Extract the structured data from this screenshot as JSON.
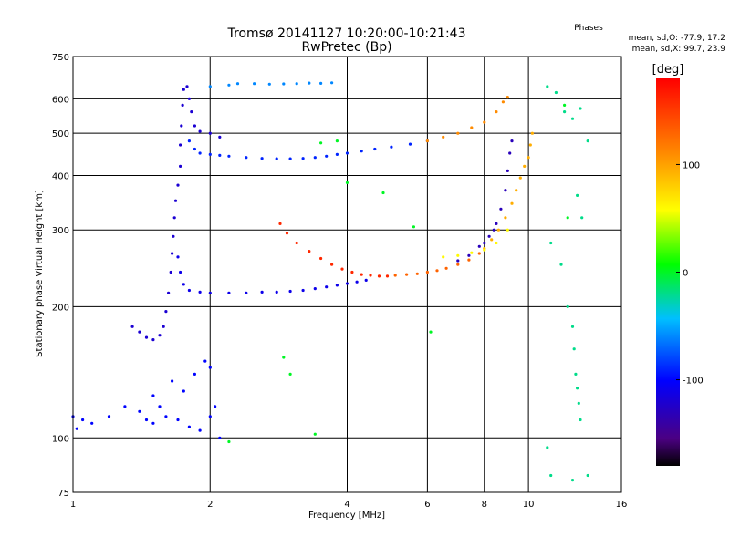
{
  "chart_data": {
    "type": "scatter",
    "title": "Tromsø 20141127 10:20:00-10:21:43",
    "subtitle": "RwPretec (Bp)",
    "xlabel": "Frequency [MHz]",
    "ylabel": "Stationary phase Virtual Height [km]",
    "x_scale": "log",
    "y_scale": "log",
    "xlim": [
      1,
      16
    ],
    "ylim": [
      75,
      750
    ],
    "x_ticks": [
      1,
      2,
      4,
      6,
      8,
      10,
      16
    ],
    "y_ticks": [
      75,
      100,
      200,
      300,
      400,
      500,
      600,
      750
    ],
    "grid": true,
    "phase_info": {
      "title": "Phases",
      "line1": "mean, sd,O: -77.9, 17.2",
      "line2": "mean, sd,X:  99.7, 23.9"
    },
    "colorbar": {
      "label": "[deg]",
      "min": -180,
      "max": 180,
      "ticks": [
        100,
        0,
        -100
      ],
      "colormap": "rainbow"
    },
    "series": [
      {
        "phase": -100,
        "points": [
          [
            1.0,
            112
          ],
          [
            1.02,
            105
          ],
          [
            1.05,
            110
          ],
          [
            1.1,
            108
          ],
          [
            1.2,
            112
          ],
          [
            1.3,
            118
          ],
          [
            1.4,
            115
          ],
          [
            1.45,
            110
          ],
          [
            1.5,
            108
          ],
          [
            1.55,
            118
          ],
          [
            1.6,
            112
          ],
          [
            1.7,
            110
          ],
          [
            1.8,
            106
          ],
          [
            1.9,
            104
          ],
          [
            2.0,
            112
          ],
          [
            2.05,
            118
          ],
          [
            2.1,
            100
          ],
          [
            1.85,
            140
          ],
          [
            1.95,
            150
          ],
          [
            2.0,
            145
          ],
          [
            1.75,
            128
          ],
          [
            1.65,
            135
          ],
          [
            1.5,
            125
          ]
        ]
      },
      {
        "phase": -120,
        "points": [
          [
            1.35,
            180
          ],
          [
            1.4,
            175
          ],
          [
            1.45,
            170
          ],
          [
            1.5,
            168
          ],
          [
            1.55,
            172
          ],
          [
            1.58,
            180
          ],
          [
            1.6,
            195
          ],
          [
            1.62,
            215
          ],
          [
            1.64,
            240
          ],
          [
            1.65,
            265
          ],
          [
            1.66,
            290
          ],
          [
            1.67,
            320
          ],
          [
            1.68,
            350
          ],
          [
            1.7,
            380
          ],
          [
            1.72,
            420
          ],
          [
            1.72,
            470
          ],
          [
            1.73,
            520
          ],
          [
            1.74,
            580
          ],
          [
            1.75,
            630
          ],
          [
            1.78,
            640
          ],
          [
            1.8,
            600
          ],
          [
            1.82,
            560
          ],
          [
            1.85,
            520
          ],
          [
            1.9,
            505
          ],
          [
            2.0,
            500
          ],
          [
            2.1,
            490
          ]
        ]
      },
      {
        "phase": -110,
        "points": [
          [
            1.7,
            260
          ],
          [
            1.72,
            240
          ],
          [
            1.75,
            225
          ],
          [
            1.8,
            218
          ],
          [
            1.9,
            216
          ],
          [
            2.0,
            215
          ],
          [
            2.2,
            215
          ],
          [
            2.4,
            215
          ],
          [
            2.6,
            216
          ],
          [
            2.8,
            216
          ],
          [
            3.0,
            217
          ],
          [
            3.2,
            218
          ],
          [
            3.4,
            220
          ],
          [
            3.6,
            222
          ],
          [
            3.8,
            224
          ],
          [
            4.0,
            226
          ],
          [
            4.2,
            228
          ],
          [
            4.4,
            230
          ]
        ]
      },
      {
        "phase": -90,
        "points": [
          [
            1.8,
            480
          ],
          [
            1.85,
            460
          ],
          [
            1.9,
            450
          ],
          [
            2.0,
            447
          ],
          [
            2.1,
            445
          ],
          [
            2.2,
            443
          ],
          [
            2.4,
            440
          ],
          [
            2.6,
            438
          ],
          [
            2.8,
            437
          ],
          [
            3.0,
            437
          ],
          [
            3.2,
            438
          ],
          [
            3.4,
            440
          ],
          [
            3.6,
            443
          ],
          [
            3.8,
            447
          ],
          [
            4.0,
            450
          ],
          [
            4.3,
            455
          ],
          [
            4.6,
            460
          ],
          [
            5.0,
            465
          ],
          [
            5.5,
            472
          ],
          [
            6.0,
            480
          ]
        ]
      },
      {
        "phase": -60,
        "points": [
          [
            2.3,
            650
          ],
          [
            2.5,
            650
          ],
          [
            2.7,
            648
          ],
          [
            2.9,
            649
          ],
          [
            3.1,
            650
          ],
          [
            3.3,
            652
          ],
          [
            3.5,
            651
          ],
          [
            3.7,
            653
          ],
          [
            2.0,
            640
          ],
          [
            2.2,
            645
          ]
        ]
      },
      {
        "phase": -130,
        "points": [
          [
            7.0,
            255
          ],
          [
            7.4,
            262
          ],
          [
            7.8,
            275
          ],
          [
            8.2,
            290
          ],
          [
            8.5,
            310
          ],
          [
            8.7,
            335
          ],
          [
            8.9,
            370
          ],
          [
            9.0,
            410
          ],
          [
            9.1,
            450
          ],
          [
            9.2,
            480
          ],
          [
            8.0,
            280
          ],
          [
            8.4,
            300
          ]
        ]
      },
      {
        "phase": 160,
        "points": [
          [
            2.85,
            310
          ],
          [
            2.95,
            295
          ],
          [
            3.1,
            280
          ],
          [
            3.3,
            268
          ],
          [
            3.5,
            258
          ],
          [
            3.7,
            250
          ],
          [
            3.9,
            244
          ],
          [
            4.1,
            240
          ],
          [
            4.3,
            237
          ],
          [
            4.5,
            236
          ],
          [
            4.7,
            235
          ],
          [
            4.9,
            235
          ]
        ]
      },
      {
        "phase": 130,
        "points": [
          [
            5.1,
            236
          ],
          [
            5.4,
            237
          ],
          [
            5.7,
            238
          ],
          [
            6.0,
            240
          ],
          [
            6.3,
            242
          ],
          [
            6.6,
            245
          ],
          [
            7.0,
            250
          ],
          [
            7.4,
            256
          ],
          [
            7.8,
            265
          ]
        ]
      },
      {
        "phase": 95,
        "points": [
          [
            8.0,
            272
          ],
          [
            8.3,
            285
          ],
          [
            8.6,
            300
          ],
          [
            8.9,
            320
          ],
          [
            9.2,
            345
          ],
          [
            9.4,
            370
          ],
          [
            9.6,
            395
          ],
          [
            9.8,
            420
          ],
          [
            10.0,
            440
          ],
          [
            10.1,
            470
          ],
          [
            10.2,
            500
          ]
        ]
      },
      {
        "phase": 110,
        "points": [
          [
            6.0,
            480
          ],
          [
            6.5,
            490
          ],
          [
            7.0,
            500
          ],
          [
            7.5,
            515
          ],
          [
            8.0,
            530
          ],
          [
            8.5,
            560
          ],
          [
            8.8,
            590
          ],
          [
            9.0,
            605
          ]
        ]
      },
      {
        "phase": 60,
        "points": [
          [
            6.5,
            260
          ],
          [
            7.0,
            262
          ],
          [
            7.5,
            266
          ],
          [
            8.0,
            270
          ],
          [
            8.5,
            280
          ],
          [
            9.0,
            300
          ]
        ]
      },
      {
        "phase": -20,
        "points": [
          [
            11.0,
            640
          ],
          [
            11.5,
            620
          ],
          [
            12.0,
            560
          ],
          [
            12.5,
            540
          ],
          [
            13.0,
            570
          ],
          [
            13.5,
            480
          ],
          [
            12.8,
            360
          ],
          [
            13.1,
            320
          ],
          [
            11.2,
            280
          ],
          [
            11.8,
            250
          ],
          [
            12.2,
            200
          ],
          [
            12.5,
            180
          ],
          [
            12.6,
            160
          ],
          [
            12.7,
            140
          ],
          [
            12.8,
            130
          ],
          [
            12.9,
            120
          ],
          [
            13.0,
            110
          ],
          [
            11.0,
            95
          ],
          [
            11.2,
            82
          ],
          [
            12.5,
            80
          ],
          [
            13.5,
            82
          ]
        ]
      },
      {
        "phase": 0,
        "points": [
          [
            3.5,
            475
          ],
          [
            3.8,
            480
          ],
          [
            4.0,
            385
          ],
          [
            4.8,
            365
          ],
          [
            5.6,
            305
          ],
          [
            6.1,
            175
          ],
          [
            2.9,
            153
          ],
          [
            3.0,
            140
          ],
          [
            3.4,
            102
          ],
          [
            2.2,
            98
          ],
          [
            12.0,
            580
          ],
          [
            12.2,
            320
          ]
        ]
      }
    ]
  }
}
